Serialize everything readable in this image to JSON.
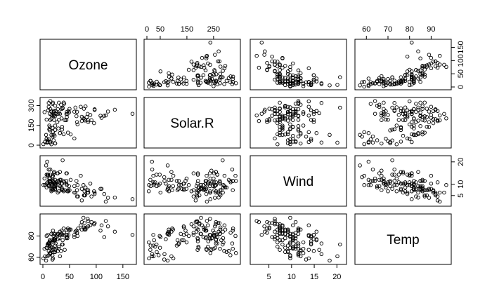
{
  "chart_data": {
    "type": "scatter",
    "variables": [
      "Ozone",
      "Solar.R",
      "Wind",
      "Temp"
    ],
    "layout": "pairs-matrix",
    "axes": {
      "Ozone": {
        "range": [
          0,
          170
        ],
        "ticks": [
          0,
          50,
          100,
          150
        ],
        "tick_side": "bottom+right"
      },
      "Solar.R": {
        "range": [
          0,
          340
        ],
        "ticks": [
          0,
          50,
          150,
          250
        ],
        "tick_side": "top+left",
        "left_ticks": [
          0,
          150,
          300
        ]
      },
      "Wind": {
        "range": [
          1.5,
          21.5
        ],
        "ticks": [
          5,
          10,
          15,
          20
        ],
        "tick_side": "bottom+right"
      },
      "Temp": {
        "range": [
          56,
          98
        ],
        "ticks": [
          60,
          70,
          80,
          90
        ],
        "tick_side": "top+left",
        "left_ticks": [
          60,
          80
        ]
      }
    },
    "tick_text": {
      "top": {
        "Solar.R": [
          "0",
          "50",
          "150",
          "250"
        ],
        "Temp": [
          "60",
          "70",
          "80",
          "90"
        ]
      },
      "bottom": {
        "Ozone": [
          "0",
          "50",
          "100",
          "150"
        ],
        "Wind": [
          "5",
          "10",
          "15",
          "20"
        ]
      },
      "left": {
        "Solar.R": [
          "0",
          "150",
          "300"
        ],
        "Temp": [
          "60",
          "80"
        ]
      },
      "right": {
        "Ozone": [
          "0",
          "50",
          "100",
          "150"
        ],
        "Wind": [
          "5",
          "10",
          "20"
        ]
      }
    },
    "records": [
      [
        41,
        190,
        7.4,
        67
      ],
      [
        36,
        118,
        8.0,
        72
      ],
      [
        12,
        149,
        12.6,
        74
      ],
      [
        18,
        313,
        11.5,
        62
      ],
      [
        28,
        null,
        14.9,
        66
      ],
      [
        23,
        299,
        8.6,
        65
      ],
      [
        19,
        99,
        13.8,
        59
      ],
      [
        8,
        19,
        20.1,
        61
      ],
      [
        7,
        194,
        8.6,
        69
      ],
      [
        16,
        256,
        9.7,
        69
      ],
      [
        11,
        290,
        9.2,
        66
      ],
      [
        14,
        274,
        10.9,
        68
      ],
      [
        18,
        65,
        13.2,
        58
      ],
      [
        14,
        334,
        11.5,
        64
      ],
      [
        34,
        307,
        12.0,
        66
      ],
      [
        6,
        78,
        18.4,
        57
      ],
      [
        30,
        322,
        11.5,
        68
      ],
      [
        11,
        44,
        9.7,
        62
      ],
      [
        1,
        8,
        9.7,
        59
      ],
      [
        11,
        320,
        16.6,
        73
      ],
      [
        4,
        25,
        9.7,
        61
      ],
      [
        32,
        92,
        12.0,
        61
      ],
      [
        23,
        13,
        12.0,
        67
      ],
      [
        45,
        252,
        14.9,
        81
      ],
      [
        115,
        223,
        5.7,
        79
      ],
      [
        37,
        279,
        7.4,
        76
      ],
      [
        null,
        286,
        8.6,
        78
      ],
      [
        null,
        287,
        9.7,
        74
      ],
      [
        null,
        242,
        16.1,
        67
      ],
      [
        null,
        186,
        9.2,
        84
      ],
      [
        null,
        220,
        8.6,
        85
      ],
      [
        null,
        264,
        14.3,
        79
      ],
      [
        29,
        127,
        9.7,
        82
      ],
      [
        71,
        291,
        13.8,
        90
      ],
      [
        39,
        323,
        11.5,
        87
      ],
      [
        null,
        259,
        10.9,
        93
      ],
      [
        23,
        148,
        8.0,
        82
      ],
      [
        null,
        332,
        13.8,
        80
      ],
      [
        21,
        191,
        14.9,
        77
      ],
      [
        37,
        284,
        20.7,
        72
      ],
      [
        20,
        37,
        9.2,
        65
      ],
      [
        12,
        120,
        11.5,
        73
      ],
      [
        13,
        137,
        10.3,
        76
      ],
      [
        135,
        269,
        4.1,
        84
      ],
      [
        49,
        248,
        9.2,
        85
      ],
      [
        32,
        236,
        9.2,
        81
      ],
      [
        64,
        175,
        4.6,
        83
      ],
      [
        40,
        314,
        10.9,
        83
      ],
      [
        77,
        276,
        5.1,
        88
      ],
      [
        97,
        267,
        6.3,
        92
      ],
      [
        97,
        272,
        5.7,
        92
      ],
      [
        85,
        175,
        7.4,
        89
      ],
      [
        10,
        264,
        14.3,
        73
      ],
      [
        27,
        175,
        14.9,
        81
      ],
      [
        7,
        48,
        14.3,
        80
      ],
      [
        48,
        260,
        6.9,
        81
      ],
      [
        35,
        274,
        10.3,
        82
      ],
      [
        61,
        285,
        6.3,
        84
      ],
      [
        79,
        187,
        5.1,
        87
      ],
      [
        63,
        220,
        11.5,
        85
      ],
      [
        16,
        7,
        6.9,
        74
      ],
      [
        80,
        294,
        8.6,
        86
      ],
      [
        108,
        223,
        8.0,
        85
      ],
      [
        20,
        81,
        8.6,
        82
      ],
      [
        52,
        82,
        12.0,
        86
      ],
      [
        82,
        213,
        7.4,
        88
      ],
      [
        50,
        275,
        7.4,
        86
      ],
      [
        64,
        253,
        7.4,
        83
      ],
      [
        59,
        254,
        9.2,
        81
      ],
      [
        39,
        83,
        6.9,
        81
      ],
      [
        9,
        24,
        13.8,
        81
      ],
      [
        16,
        77,
        7.4,
        82
      ],
      [
        78,
        null,
        6.9,
        86
      ],
      [
        35,
        null,
        7.4,
        85
      ],
      [
        66,
        null,
        4.6,
        87
      ],
      [
        122,
        255,
        4.0,
        89
      ],
      [
        89,
        229,
        10.3,
        90
      ],
      [
        110,
        207,
        8.0,
        90
      ],
      [
        44,
        192,
        11.5,
        86
      ],
      [
        28,
        273,
        11.5,
        82
      ],
      [
        65,
        157,
        9.7,
        80
      ],
      [
        22,
        71,
        10.3,
        77
      ],
      [
        59,
        51,
        6.3,
        79
      ],
      [
        23,
        115,
        7.4,
        76
      ],
      [
        31,
        244,
        10.9,
        78
      ],
      [
        44,
        190,
        10.3,
        78
      ],
      [
        21,
        259,
        15.5,
        77
      ],
      [
        9,
        36,
        14.3,
        72
      ],
      [
        45,
        212,
        9.7,
        79
      ],
      [
        168,
        238,
        3.4,
        81
      ],
      [
        73,
        215,
        8.0,
        86
      ],
      [
        76,
        203,
        9.7,
        97
      ],
      [
        118,
        225,
        2.3,
        94
      ],
      [
        84,
        237,
        6.3,
        96
      ],
      [
        85,
        188,
        6.3,
        94
      ],
      [
        96,
        167,
        6.9,
        91
      ],
      [
        78,
        197,
        5.1,
        92
      ],
      [
        73,
        183,
        2.8,
        93
      ],
      [
        91,
        189,
        4.6,
        93
      ],
      [
        47,
        95,
        7.4,
        87
      ],
      [
        32,
        92,
        15.5,
        84
      ],
      [
        20,
        252,
        10.9,
        80
      ],
      [
        23,
        220,
        10.3,
        78
      ],
      [
        21,
        230,
        10.9,
        75
      ],
      [
        24,
        259,
        9.7,
        73
      ],
      [
        44,
        236,
        14.9,
        81
      ],
      [
        21,
        259,
        15.5,
        76
      ],
      [
        28,
        238,
        6.3,
        77
      ],
      [
        9,
        24,
        10.9,
        71
      ],
      [
        13,
        112,
        11.5,
        71
      ],
      [
        46,
        237,
        6.9,
        78
      ],
      [
        18,
        224,
        13.8,
        67
      ],
      [
        13,
        27,
        10.3,
        76
      ],
      [
        24,
        238,
        10.3,
        68
      ],
      [
        16,
        201,
        8.0,
        82
      ],
      [
        13,
        238,
        12.6,
        64
      ],
      [
        23,
        14,
        9.2,
        71
      ],
      [
        36,
        139,
        10.3,
        81
      ],
      [
        7,
        49,
        10.3,
        69
      ],
      [
        14,
        20,
        16.6,
        63
      ],
      [
        30,
        193,
        6.9,
        70
      ],
      [
        14,
        191,
        14.3,
        75
      ],
      [
        18,
        131,
        8.0,
        76
      ],
      [
        20,
        223,
        11.5,
        68
      ],
      [
        12,
        120,
        9.7,
        73
      ],
      [
        3,
        250,
        12.6,
        68
      ],
      [
        16,
        229,
        10.3,
        70
      ],
      [
        19,
        322,
        7.4,
        85
      ],
      [
        35,
        203,
        8.6,
        82
      ],
      [
        null,
        66,
        11.5,
        63
      ],
      [
        null,
        258,
        6.3,
        91
      ],
      [
        null,
        138,
        8.0,
        89
      ],
      [
        null,
        83,
        9.2,
        84
      ],
      [
        null,
        145,
        11.5,
        85
      ],
      [
        null,
        98,
        9.2,
        86
      ],
      [
        null,
        219,
        7.4,
        87
      ],
      [
        null,
        31,
        10.9,
        70
      ],
      [
        null,
        197,
        7.4,
        91
      ],
      [
        null,
        78,
        8.0,
        83
      ],
      [
        null,
        139,
        7.4,
        88
      ]
    ]
  }
}
